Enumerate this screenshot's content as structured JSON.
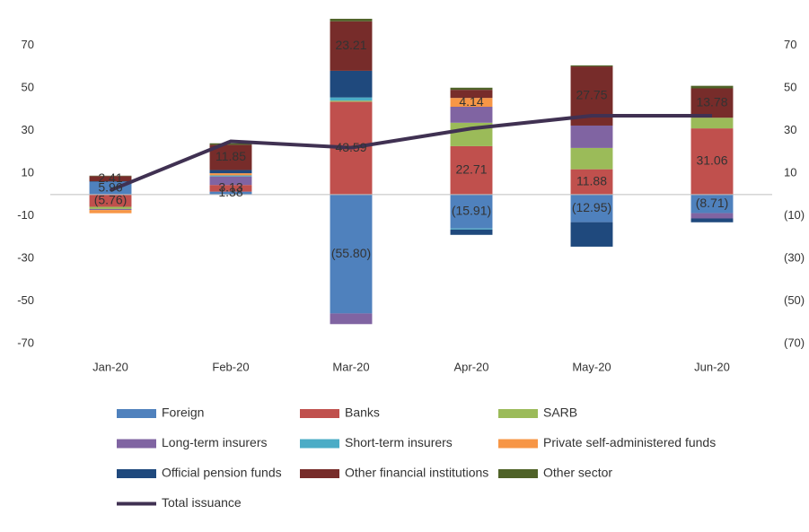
{
  "chart_data": {
    "type": "stacked_bar",
    "categories": [
      "Jan-20",
      "Feb-20",
      "Mar-20",
      "Apr-20",
      "May-20",
      "Jun-20"
    ],
    "series": [
      {
        "name": "Foreign",
        "color": "#4f81bd",
        "values": [
          5.96,
          1.38,
          -55.8,
          -15.91,
          -12.95,
          -8.71
        ],
        "value_labels": [
          "5.96",
          "1.38",
          "(55.80)",
          "(15.91)",
          "(12.95)",
          "(8.71)"
        ]
      },
      {
        "name": "Banks",
        "color": "#c0504d",
        "values": [
          -5.76,
          3.13,
          43.59,
          22.71,
          11.88,
          31.06
        ],
        "value_labels": [
          "(5.76)",
          "3.13",
          "43.59",
          "22.71",
          "11.88",
          "31.06"
        ]
      },
      {
        "name": "SARB",
        "color": "#9bbb59",
        "values": [
          -1,
          0,
          0.5,
          11,
          10,
          5
        ]
      },
      {
        "name": "Long-term insurers",
        "color": "#8064a2",
        "values": [
          -0.5,
          4,
          -5,
          7.5,
          10.5,
          -2.5
        ]
      },
      {
        "name": "Short-term insurers",
        "color": "#4bacc6",
        "values": [
          0,
          0.5,
          1.5,
          -0.5,
          0,
          0
        ]
      },
      {
        "name": "Private self-administered funds",
        "color": "#f79646",
        "values": [
          -1.5,
          1,
          0,
          4.14,
          0,
          0
        ],
        "value_labels": [
          null,
          null,
          null,
          "4.14",
          null,
          null
        ]
      },
      {
        "name": "Official pension funds",
        "color": "#1f497d",
        "values": [
          0.3,
          1.5,
          12.5,
          -2.5,
          -11.5,
          -1.8
        ]
      },
      {
        "name": "Other financial institutions",
        "color": "#772c2a",
        "values": [
          2.41,
          11.85,
          23.21,
          3.8,
          27.75,
          13.78
        ],
        "value_labels": [
          "2.41",
          "11.85",
          "23.21",
          null,
          "27.75",
          "13.78"
        ]
      },
      {
        "name": "Other sector",
        "color": "#4f6228",
        "values": [
          0.2,
          0.7,
          1.2,
          1,
          0.5,
          1.2
        ]
      }
    ],
    "line_series": {
      "name": "Total issuance",
      "color": "#403152",
      "values": [
        2,
        25,
        22,
        31,
        37,
        37
      ]
    },
    "ylim": [
      -75,
      85
    ],
    "yticks": [
      -70,
      -50,
      -30,
      -10,
      10,
      30,
      50,
      70
    ],
    "y2lim": [
      -75,
      85
    ],
    "y2ticks": [
      {
        "value": -70,
        "label": "(70)"
      },
      {
        "value": -50,
        "label": "(50)"
      },
      {
        "value": -30,
        "label": "(30)"
      },
      {
        "value": -10,
        "label": "(10)"
      },
      10,
      30,
      50,
      70
    ],
    "grid": false
  }
}
